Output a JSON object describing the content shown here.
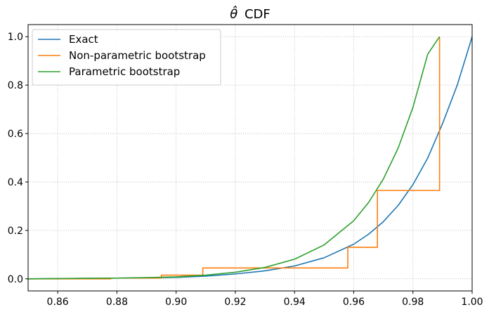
{
  "chart_data": {
    "type": "line",
    "title": "θ̂ CDF",
    "title_parts": {
      "symbol": "θ̂",
      "text": "CDF"
    },
    "xlabel": "",
    "ylabel": "",
    "xlim": [
      0.85,
      1.0
    ],
    "ylim": [
      -0.05,
      1.05
    ],
    "xticks": [
      0.86,
      0.88,
      0.9,
      0.92,
      0.94,
      0.96,
      0.98,
      1.0
    ],
    "xtick_labels": [
      "0.86",
      "0.88",
      "0.90",
      "0.92",
      "0.94",
      "0.96",
      "0.98",
      "1.00"
    ],
    "yticks": [
      0.0,
      0.2,
      0.4,
      0.6,
      0.8,
      1.0
    ],
    "ytick_labels": [
      "0.0",
      "0.2",
      "0.4",
      "0.6",
      "0.8",
      "1.0"
    ],
    "grid": true,
    "legend_position": "top-left",
    "series": [
      {
        "name": "Exact",
        "color": "#1f77b4",
        "style": "line",
        "x": [
          0.85,
          0.86,
          0.87,
          0.88,
          0.89,
          0.9,
          0.91,
          0.92,
          0.93,
          0.94,
          0.95,
          0.96,
          0.965,
          0.97,
          0.975,
          0.98,
          0.985,
          0.99,
          0.995,
          1.0
        ],
        "y": [
          0.0,
          0.001,
          0.002,
          0.003,
          0.004,
          0.006,
          0.011,
          0.02,
          0.033,
          0.053,
          0.087,
          0.143,
          0.184,
          0.236,
          0.303,
          0.389,
          0.499,
          0.641,
          0.801,
          1.0
        ]
      },
      {
        "name": "Non-parametric bootstrap",
        "color": "#ff7f0e",
        "style": "step",
        "x": [
          0.85,
          0.878,
          0.895,
          0.909,
          0.958,
          0.968,
          0.989,
          0.989
        ],
        "y": [
          0.0,
          0.003,
          0.015,
          0.045,
          0.13,
          0.365,
          0.365,
          1.0
        ]
      },
      {
        "name": "Parametric bootstrap",
        "color": "#2ca02c",
        "style": "line",
        "x": [
          0.85,
          0.86,
          0.87,
          0.88,
          0.89,
          0.9,
          0.91,
          0.92,
          0.93,
          0.94,
          0.95,
          0.96,
          0.965,
          0.97,
          0.975,
          0.98,
          0.985,
          0.989
        ],
        "y": [
          0.0,
          0.001,
          0.002,
          0.003,
          0.005,
          0.008,
          0.015,
          0.027,
          0.047,
          0.081,
          0.14,
          0.24,
          0.315,
          0.412,
          0.54,
          0.708,
          0.928,
          1.0
        ]
      }
    ]
  }
}
